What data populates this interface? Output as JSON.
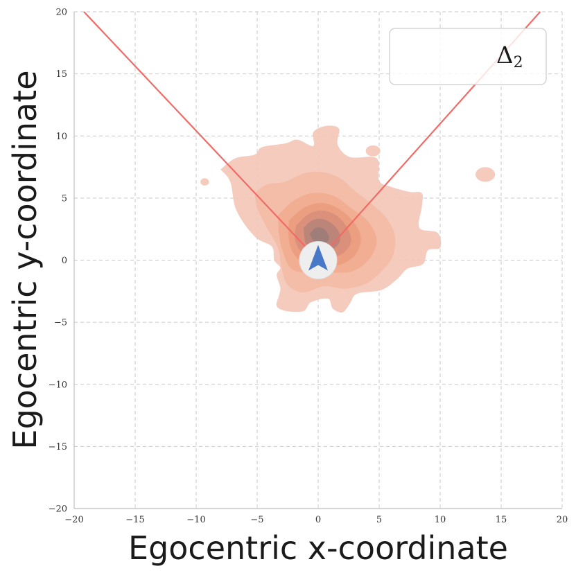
{
  "chart_data": {
    "type": "heatmap",
    "subtype": "kde-density-contour",
    "title": "",
    "xlabel": "Egocentric x-coordinate",
    "ylabel": "Egocentric y-coordinate",
    "xlim": [
      -20,
      20
    ],
    "ylim": [
      -20,
      20
    ],
    "x_ticks": [
      -20,
      -15,
      -10,
      -5,
      0,
      5,
      10,
      15,
      20
    ],
    "y_ticks": [
      -20,
      -15,
      -10,
      -5,
      0,
      5,
      10,
      15,
      20
    ],
    "x_tick_labels": [
      "−20",
      "−15",
      "−10",
      "−5",
      "0",
      "5",
      "10",
      "15",
      "20"
    ],
    "y_tick_labels": [
      "−20",
      "−15",
      "−10",
      "−5",
      "0",
      "5",
      "10",
      "15",
      "20"
    ],
    "grid": true,
    "legend": {
      "placement": "top-right",
      "entries": [
        "Δ",
        "2"
      ]
    },
    "field_of_view_lines": [
      {
        "from": [
          0,
          0
        ],
        "to": [
          -19.2,
          20
        ],
        "color": "#f06a66"
      },
      {
        "from": [
          0,
          0
        ],
        "to": [
          18.2,
          20
        ],
        "color": "#f06a66"
      }
    ],
    "agent_marker": {
      "x": 0,
      "y": 0,
      "icon": "arrow-up-icon",
      "color": "#4a78c8",
      "background": "#eeeeee"
    },
    "density_colors": [
      "#f3c7b7",
      "#f2bca6",
      "#f1ac90",
      "#ec9c7f",
      "#d98f7b",
      "#b98678",
      "#9c7d78"
    ],
    "density_levels": [
      {
        "level": 1,
        "polygon": [
          [
            -8.0,
            7.3
          ],
          [
            -6.8,
            8.2
          ],
          [
            -5.2,
            8.5
          ],
          [
            -4.6,
            9.1
          ],
          [
            -2.7,
            9.4
          ],
          [
            -1.7,
            9.7
          ],
          [
            -0.4,
            9.2
          ],
          [
            -0.4,
            10.3
          ],
          [
            0.6,
            10.8
          ],
          [
            1.7,
            10.6
          ],
          [
            1.6,
            9.3
          ],
          [
            2.6,
            8.3
          ],
          [
            4.8,
            8.2
          ],
          [
            5.0,
            6.4
          ],
          [
            6.0,
            5.9
          ],
          [
            7.5,
            5.5
          ],
          [
            8.5,
            5.4
          ],
          [
            8.5,
            4.3
          ],
          [
            8.3,
            2.6
          ],
          [
            9.8,
            2.2
          ],
          [
            10.0,
            1.0
          ],
          [
            9.0,
            0.8
          ],
          [
            8.6,
            -0.3
          ],
          [
            7.3,
            -0.7
          ],
          [
            6.5,
            -1.5
          ],
          [
            5.2,
            -2.4
          ],
          [
            3.2,
            -2.7
          ],
          [
            2.6,
            -3.5
          ],
          [
            2.0,
            -4.2
          ],
          [
            1.2,
            -3.9
          ],
          [
            0.8,
            -3.1
          ],
          [
            -0.6,
            -3.4
          ],
          [
            -1.2,
            -4.1
          ],
          [
            -2.6,
            -4.1
          ],
          [
            -3.4,
            -3.7
          ],
          [
            -3.2,
            -2.8
          ],
          [
            -3.1,
            -2.2
          ],
          [
            -3.4,
            -1.2
          ],
          [
            -3.1,
            -0.6
          ],
          [
            -3.6,
            0.0
          ],
          [
            -3.8,
            1.1
          ],
          [
            -5.2,
            1.9
          ],
          [
            -6.7,
            4.0
          ],
          [
            -7.2,
            6.3
          ],
          [
            -8.0,
            7.3
          ]
        ]
      },
      {
        "level": 2,
        "polygon": [
          [
            -5.2,
            5.4
          ],
          [
            -4.2,
            6.1
          ],
          [
            -2.8,
            6.3
          ],
          [
            -1.1,
            7.0
          ],
          [
            0.3,
            7.1
          ],
          [
            1.8,
            6.6
          ],
          [
            3.1,
            5.5
          ],
          [
            4.3,
            4.6
          ],
          [
            5.6,
            3.4
          ],
          [
            6.3,
            1.9
          ],
          [
            6.1,
            0.3
          ],
          [
            5.2,
            -0.9
          ],
          [
            3.9,
            -1.9
          ],
          [
            2.2,
            -2.3
          ],
          [
            0.5,
            -2.1
          ],
          [
            -1.2,
            -2.6
          ],
          [
            -2.5,
            -2.0
          ],
          [
            -3.0,
            -0.6
          ],
          [
            -3.3,
            1.0
          ],
          [
            -4.2,
            2.6
          ],
          [
            -5.0,
            4.2
          ],
          [
            -5.2,
            5.4
          ]
        ]
      },
      {
        "level": 3,
        "polygon": [
          [
            -3.3,
            3.6
          ],
          [
            -2.0,
            4.8
          ],
          [
            -0.5,
            5.4
          ],
          [
            1.2,
            5.2
          ],
          [
            2.7,
            4.2
          ],
          [
            4.1,
            3.1
          ],
          [
            4.8,
            1.6
          ],
          [
            4.2,
            0.1
          ],
          [
            2.8,
            -0.9
          ],
          [
            1.0,
            -1.0
          ],
          [
            -0.8,
            -1.0
          ],
          [
            -2.2,
            -0.7
          ],
          [
            -2.9,
            0.7
          ],
          [
            -3.2,
            2.0
          ],
          [
            -3.3,
            3.6
          ]
        ]
      },
      {
        "level": 4,
        "polygon": [
          [
            -2.4,
            3.2
          ],
          [
            -1.2,
            4.2
          ],
          [
            0.2,
            4.6
          ],
          [
            1.6,
            4.2
          ],
          [
            2.9,
            3.1
          ],
          [
            3.5,
            1.8
          ],
          [
            3.1,
            0.5
          ],
          [
            2.0,
            -0.3
          ],
          [
            0.6,
            -0.5
          ],
          [
            -0.9,
            -0.4
          ],
          [
            -2.0,
            0.5
          ],
          [
            -2.4,
            1.7
          ],
          [
            -2.4,
            3.2
          ]
        ]
      },
      {
        "level": 5,
        "polygon": [
          [
            -1.8,
            2.8
          ],
          [
            -0.8,
            3.7
          ],
          [
            0.3,
            4.0
          ],
          [
            1.5,
            3.6
          ],
          [
            2.4,
            2.6
          ],
          [
            2.7,
            1.5
          ],
          [
            2.1,
            0.6
          ],
          [
            1.0,
            0.2
          ],
          [
            -0.3,
            0.2
          ],
          [
            -1.4,
            0.7
          ],
          [
            -1.9,
            1.7
          ],
          [
            -1.8,
            2.8
          ]
        ]
      },
      {
        "level": 6,
        "polygon": [
          [
            -1.2,
            2.6
          ],
          [
            -0.5,
            3.2
          ],
          [
            0.4,
            3.3
          ],
          [
            1.3,
            2.8
          ],
          [
            1.8,
            2.0
          ],
          [
            1.6,
            1.2
          ],
          [
            0.8,
            0.8
          ],
          [
            -0.2,
            0.8
          ],
          [
            -1.0,
            1.3
          ],
          [
            -1.2,
            2.6
          ]
        ]
      },
      {
        "level": 7,
        "polygon": [
          [
            -0.7,
            2.1
          ],
          [
            -0.2,
            2.6
          ],
          [
            0.5,
            2.5
          ],
          [
            0.9,
            1.8
          ],
          [
            0.5,
            1.3
          ],
          [
            -0.2,
            1.3
          ],
          [
            -0.7,
            2.1
          ]
        ]
      }
    ],
    "density_islands": [
      {
        "level": 1,
        "center": [
          13.7,
          6.9
        ],
        "rx": 0.8,
        "ry": 0.6
      },
      {
        "level": 1,
        "center": [
          -9.3,
          6.3
        ],
        "rx": 0.35,
        "ry": 0.3
      },
      {
        "level": 1,
        "center": [
          4.5,
          8.8
        ],
        "rx": 0.6,
        "ry": 0.45
      }
    ]
  }
}
